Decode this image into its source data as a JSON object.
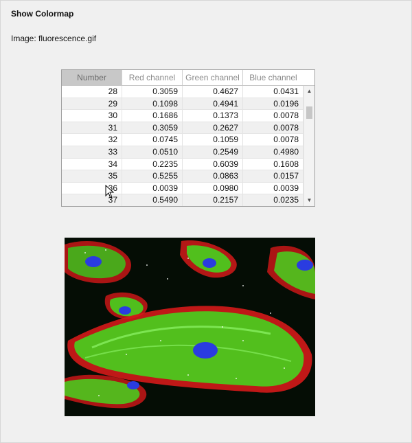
{
  "window": {
    "title": "Show Colormap",
    "image_label": "Image: fluorescence.gif"
  },
  "table": {
    "columns": [
      "Number",
      "Red channel",
      "Green channel",
      "Blue channel"
    ],
    "rows": [
      [
        "28",
        "0.3059",
        "0.4627",
        "0.0431"
      ],
      [
        "29",
        "0.1098",
        "0.4941",
        "0.0196"
      ],
      [
        "30",
        "0.1686",
        "0.1373",
        "0.0078"
      ],
      [
        "31",
        "0.3059",
        "0.2627",
        "0.0078"
      ],
      [
        "32",
        "0.0745",
        "0.1059",
        "0.0078"
      ],
      [
        "33",
        "0.0510",
        "0.2549",
        "0.4980"
      ],
      [
        "34",
        "0.2235",
        "0.6039",
        "0.1608"
      ],
      [
        "35",
        "0.5255",
        "0.0863",
        "0.0157"
      ],
      [
        "36",
        "0.0039",
        "0.0980",
        "0.0039"
      ],
      [
        "37",
        "0.5490",
        "0.2157",
        "0.0235"
      ]
    ]
  },
  "scrollbar": {
    "up_icon": "triangle-up",
    "down_icon": "triangle-down"
  },
  "image": {
    "description_icon": "fluorescence-cells-image",
    "colors": {
      "background": "#050d05",
      "actin_red": "#d41a1a",
      "tubulin_green": "#46d21e",
      "nucleus_blue": "#2a3ce0"
    }
  }
}
